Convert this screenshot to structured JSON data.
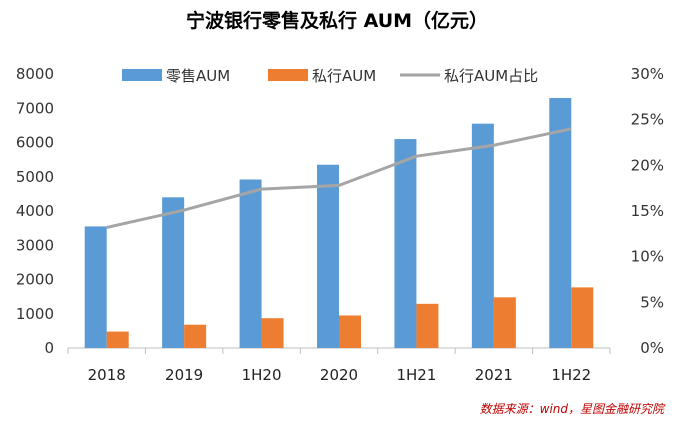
{
  "title": "宁波银行零售及私行 AUM（亿元）",
  "source": "数据来源：wind，星图金融研究院",
  "chart_data": {
    "type": "bar",
    "categories": [
      "2018",
      "2019",
      "1H20",
      "2020",
      "1H21",
      "2021",
      "1H22"
    ],
    "series": [
      {
        "name": "零售AUM",
        "type": "bar",
        "axis": "left",
        "color": "#5b9bd5",
        "values": [
          3550,
          4400,
          4920,
          5350,
          6100,
          6550,
          7300
        ]
      },
      {
        "name": "私行AUM",
        "type": "bar",
        "axis": "left",
        "color": "#ed7d31",
        "values": [
          480,
          680,
          870,
          950,
          1290,
          1480,
          1770
        ]
      },
      {
        "name": "私行AUM占比",
        "type": "line",
        "axis": "right",
        "color": "#a5a5a5",
        "values": [
          0.132,
          0.151,
          0.174,
          0.178,
          0.21,
          0.222,
          0.24
        ]
      }
    ],
    "ylim": [
      0,
      8000
    ],
    "yticks": [
      "0",
      "1000",
      "2000",
      "3000",
      "4000",
      "5000",
      "6000",
      "7000",
      "8000"
    ],
    "y2lim": [
      0,
      0.3
    ],
    "y2ticks": [
      "0%",
      "5%",
      "10%",
      "15%",
      "20%",
      "25%",
      "30%"
    ],
    "legend_position": "top",
    "grid": false
  }
}
